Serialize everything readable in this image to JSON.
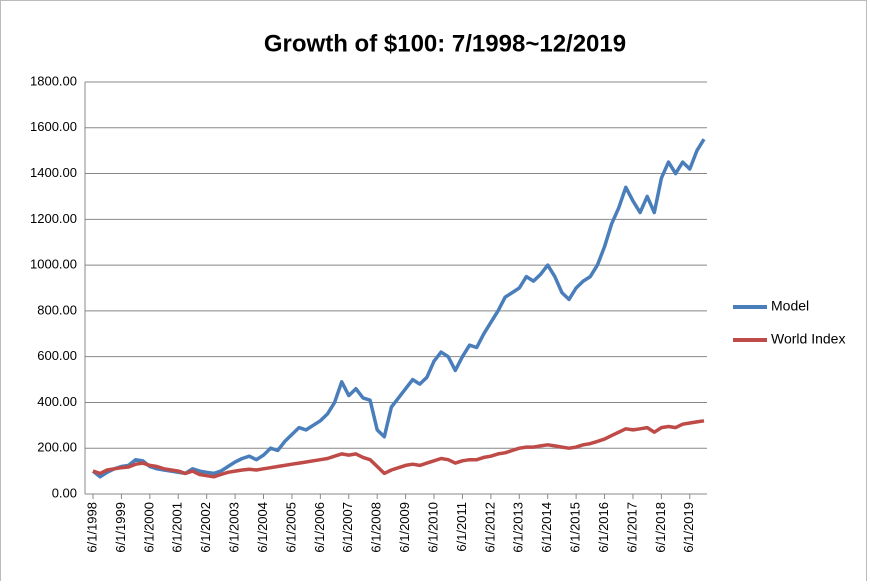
{
  "chart_data": {
    "type": "line",
    "title": "Growth of $100: 7/1998~12/2019",
    "categories": [
      "6/1/1998",
      null,
      null,
      null,
      "6/1/1999",
      null,
      null,
      null,
      "6/1/2000",
      null,
      null,
      null,
      "6/1/2001",
      null,
      null,
      null,
      "6/1/2002",
      null,
      null,
      null,
      "6/1/2003",
      null,
      null,
      null,
      "6/1/2004",
      null,
      null,
      null,
      "6/1/2005",
      null,
      null,
      null,
      "6/1/2006",
      null,
      null,
      null,
      "6/1/2007",
      null,
      null,
      null,
      "6/1/2008",
      null,
      null,
      null,
      "6/1/2009",
      null,
      null,
      null,
      "6/1/2010",
      null,
      null,
      null,
      "6/1/2011",
      null,
      null,
      null,
      "6/1/2012",
      null,
      null,
      null,
      "6/1/2013",
      null,
      null,
      null,
      "6/1/2014",
      null,
      null,
      null,
      "6/1/2015",
      null,
      null,
      null,
      "6/1/2016",
      null,
      null,
      null,
      "6/1/2017",
      null,
      null,
      null,
      "6/1/2018",
      null,
      null,
      null,
      "6/1/2019",
      null,
      null
    ],
    "series": [
      {
        "name": "Model",
        "color": "#4a7ebb",
        "values": [
          100,
          75,
          95,
          110,
          120,
          125,
          150,
          145,
          120,
          110,
          105,
          100,
          95,
          90,
          110,
          100,
          95,
          90,
          100,
          120,
          140,
          155,
          165,
          150,
          170,
          200,
          190,
          230,
          260,
          290,
          280,
          300,
          320,
          350,
          400,
          490,
          430,
          460,
          420,
          410,
          280,
          250,
          380,
          420,
          460,
          500,
          480,
          510,
          580,
          620,
          600,
          540,
          600,
          650,
          640,
          700,
          750,
          800,
          860,
          880,
          900,
          950,
          930,
          960,
          1000,
          950,
          880,
          850,
          900,
          930,
          950,
          1000,
          1080,
          1180,
          1250,
          1340,
          1280,
          1230,
          1300,
          1230,
          1380,
          1450,
          1400,
          1450,
          1420,
          1500,
          1550
        ]
      },
      {
        "name": "World Index",
        "color": "#be4b48",
        "values": [
          100,
          90,
          105,
          110,
          115,
          118,
          130,
          135,
          125,
          120,
          110,
          105,
          100,
          90,
          100,
          85,
          80,
          75,
          85,
          95,
          100,
          105,
          108,
          105,
          110,
          115,
          120,
          125,
          130,
          135,
          140,
          145,
          150,
          155,
          165,
          175,
          170,
          175,
          160,
          150,
          120,
          90,
          105,
          115,
          125,
          130,
          125,
          135,
          145,
          155,
          150,
          135,
          145,
          150,
          150,
          160,
          165,
          175,
          180,
          190,
          200,
          205,
          205,
          210,
          215,
          210,
          205,
          200,
          205,
          215,
          220,
          230,
          240,
          255,
          270,
          285,
          280,
          285,
          290,
          270,
          290,
          295,
          290,
          305,
          310,
          315,
          320
        ]
      }
    ],
    "ylim": [
      0,
      1800
    ],
    "yticks": [
      {
        "value": 0,
        "label": "0.00"
      },
      {
        "value": 200,
        "label": "200.00"
      },
      {
        "value": 400,
        "label": "400.00"
      },
      {
        "value": 600,
        "label": "600.00"
      },
      {
        "value": 800,
        "label": "800.00"
      },
      {
        "value": 1000,
        "label": "1000.00"
      },
      {
        "value": 1200,
        "label": "1200.00"
      },
      {
        "value": 1400,
        "label": "1400.00"
      },
      {
        "value": 1600,
        "label": "1600.00"
      },
      {
        "value": 1800,
        "label": "1800.00"
      }
    ],
    "grid": true,
    "legend": "right"
  }
}
